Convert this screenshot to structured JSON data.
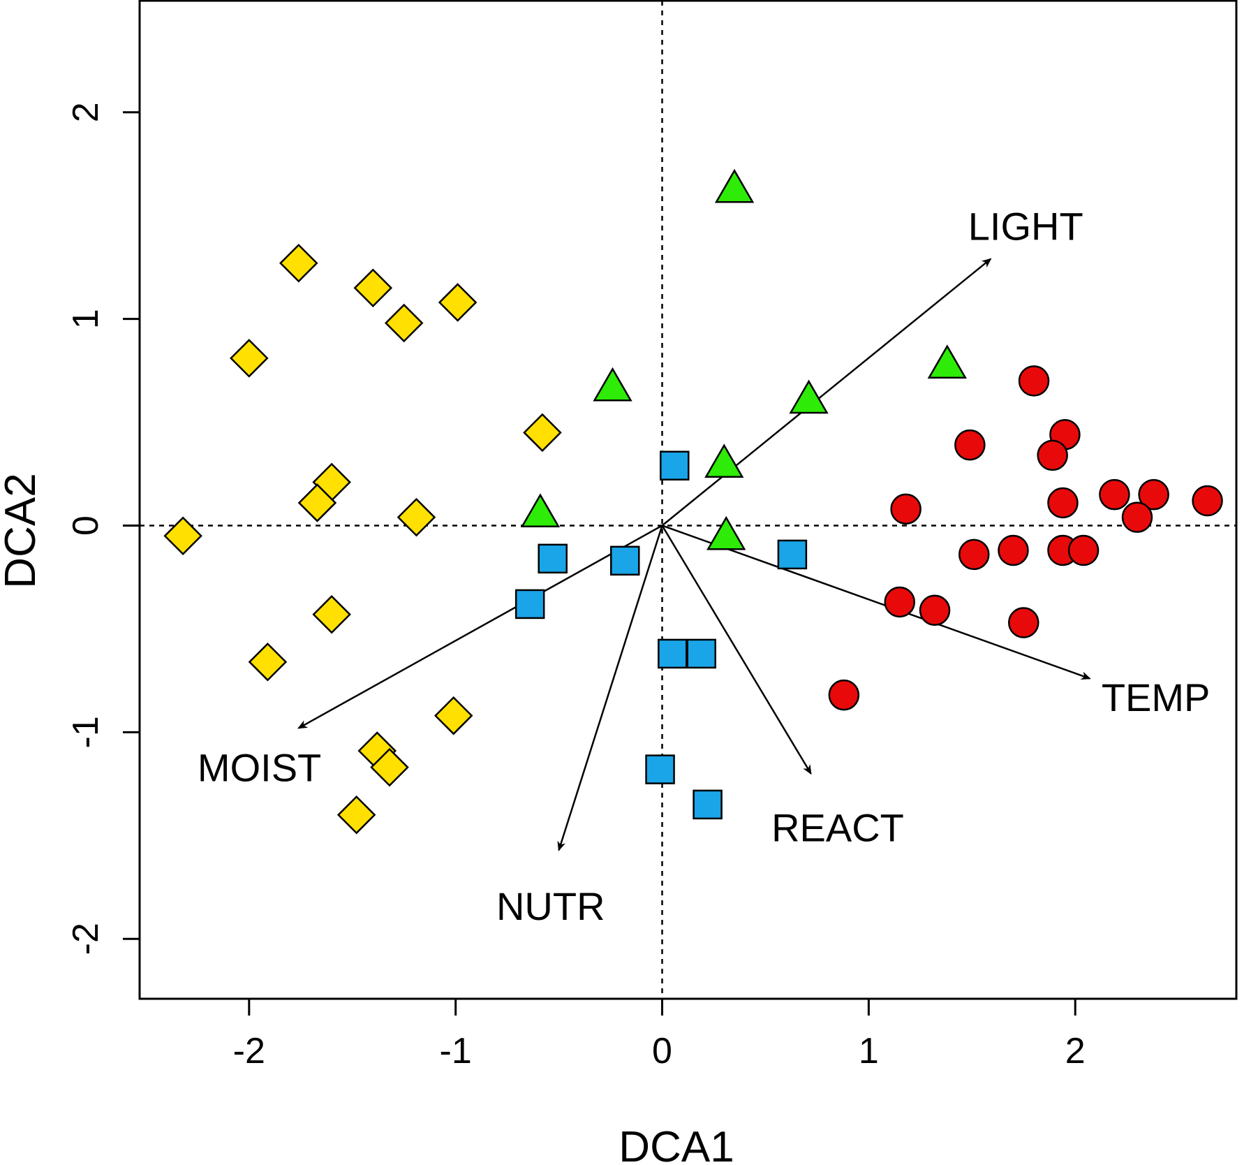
{
  "chart_data": {
    "type": "scatter",
    "title": "",
    "xlabel": "DCA1",
    "ylabel": "DCA2",
    "xlim": [
      -2.53,
      2.78
    ],
    "ylim": [
      -2.29,
      2.54
    ],
    "xticks": [
      -2,
      -1,
      0,
      1,
      2
    ],
    "yticks": [
      -2,
      -1,
      0,
      1,
      2
    ],
    "xtick_labels": [
      "-2",
      "-1",
      "0",
      "1",
      "2"
    ],
    "ytick_labels": [
      "-2",
      "-1",
      "0",
      "1",
      "2"
    ],
    "reference_lines": {
      "x0": true,
      "y0": true,
      "style": "dotted"
    },
    "grid": false,
    "legend": "none",
    "series": [
      {
        "marker": "diamond",
        "color": "#FFE000",
        "points": [
          [
            -2.32,
            -0.05
          ],
          [
            -2.0,
            0.81
          ],
          [
            -1.76,
            1.27
          ],
          [
            -1.4,
            1.15
          ],
          [
            -1.25,
            0.98
          ],
          [
            -0.99,
            1.08
          ],
          [
            -0.58,
            0.45
          ],
          [
            -1.6,
            0.21
          ],
          [
            -1.67,
            0.11
          ],
          [
            -1.19,
            0.04
          ],
          [
            -1.6,
            -0.43
          ],
          [
            -1.91,
            -0.66
          ],
          [
            -1.01,
            -0.92
          ],
          [
            -1.38,
            -1.09
          ],
          [
            -1.32,
            -1.17
          ],
          [
            -1.48,
            -1.4
          ]
        ]
      },
      {
        "marker": "triangle",
        "color": "#2EEB08",
        "points": [
          [
            0.35,
            1.63
          ],
          [
            1.38,
            0.78
          ],
          [
            -0.24,
            0.67
          ],
          [
            0.71,
            0.61
          ],
          [
            0.3,
            0.3
          ],
          [
            -0.59,
            0.06
          ],
          [
            0.31,
            -0.05
          ]
        ]
      },
      {
        "marker": "square",
        "color": "#1AA5E8",
        "points": [
          [
            0.06,
            0.29
          ],
          [
            -0.53,
            -0.16
          ],
          [
            -0.18,
            -0.17
          ],
          [
            -0.64,
            -0.38
          ],
          [
            0.63,
            -0.14
          ],
          [
            0.05,
            -0.62
          ],
          [
            0.19,
            -0.62
          ],
          [
            -0.01,
            -1.18
          ],
          [
            0.22,
            -1.35
          ]
        ]
      },
      {
        "marker": "circle",
        "color": "#E80A0A",
        "points": [
          [
            1.8,
            0.7
          ],
          [
            1.49,
            0.39
          ],
          [
            1.95,
            0.44
          ],
          [
            1.89,
            0.34
          ],
          [
            2.19,
            0.15
          ],
          [
            2.38,
            0.15
          ],
          [
            2.64,
            0.12
          ],
          [
            1.94,
            0.11
          ],
          [
            2.3,
            0.04
          ],
          [
            1.18,
            0.08
          ],
          [
            1.51,
            -0.14
          ],
          [
            1.7,
            -0.12
          ],
          [
            1.94,
            -0.12
          ],
          [
            2.04,
            -0.12
          ],
          [
            1.15,
            -0.37
          ],
          [
            1.32,
            -0.41
          ],
          [
            1.75,
            -0.47
          ],
          [
            0.88,
            -0.82
          ]
        ]
      }
    ],
    "vectors": [
      {
        "label": "LIGHT",
        "x": 1.59,
        "y": 1.29,
        "label_x": 1.76,
        "label_y": 1.45
      },
      {
        "label": "TEMP",
        "x": 2.07,
        "y": -0.74,
        "label_x": 2.39,
        "label_y": -0.83
      },
      {
        "label": "REACT",
        "x": 0.72,
        "y": -1.2,
        "label_x": 0.85,
        "label_y": -1.46
      },
      {
        "label": "NUTR",
        "x": -0.5,
        "y": -1.57,
        "label_x": -0.54,
        "label_y": -1.84
      },
      {
        "label": "MOIST",
        "x": -1.76,
        "y": -0.98,
        "label_x": -1.95,
        "label_y": -1.17
      }
    ]
  }
}
